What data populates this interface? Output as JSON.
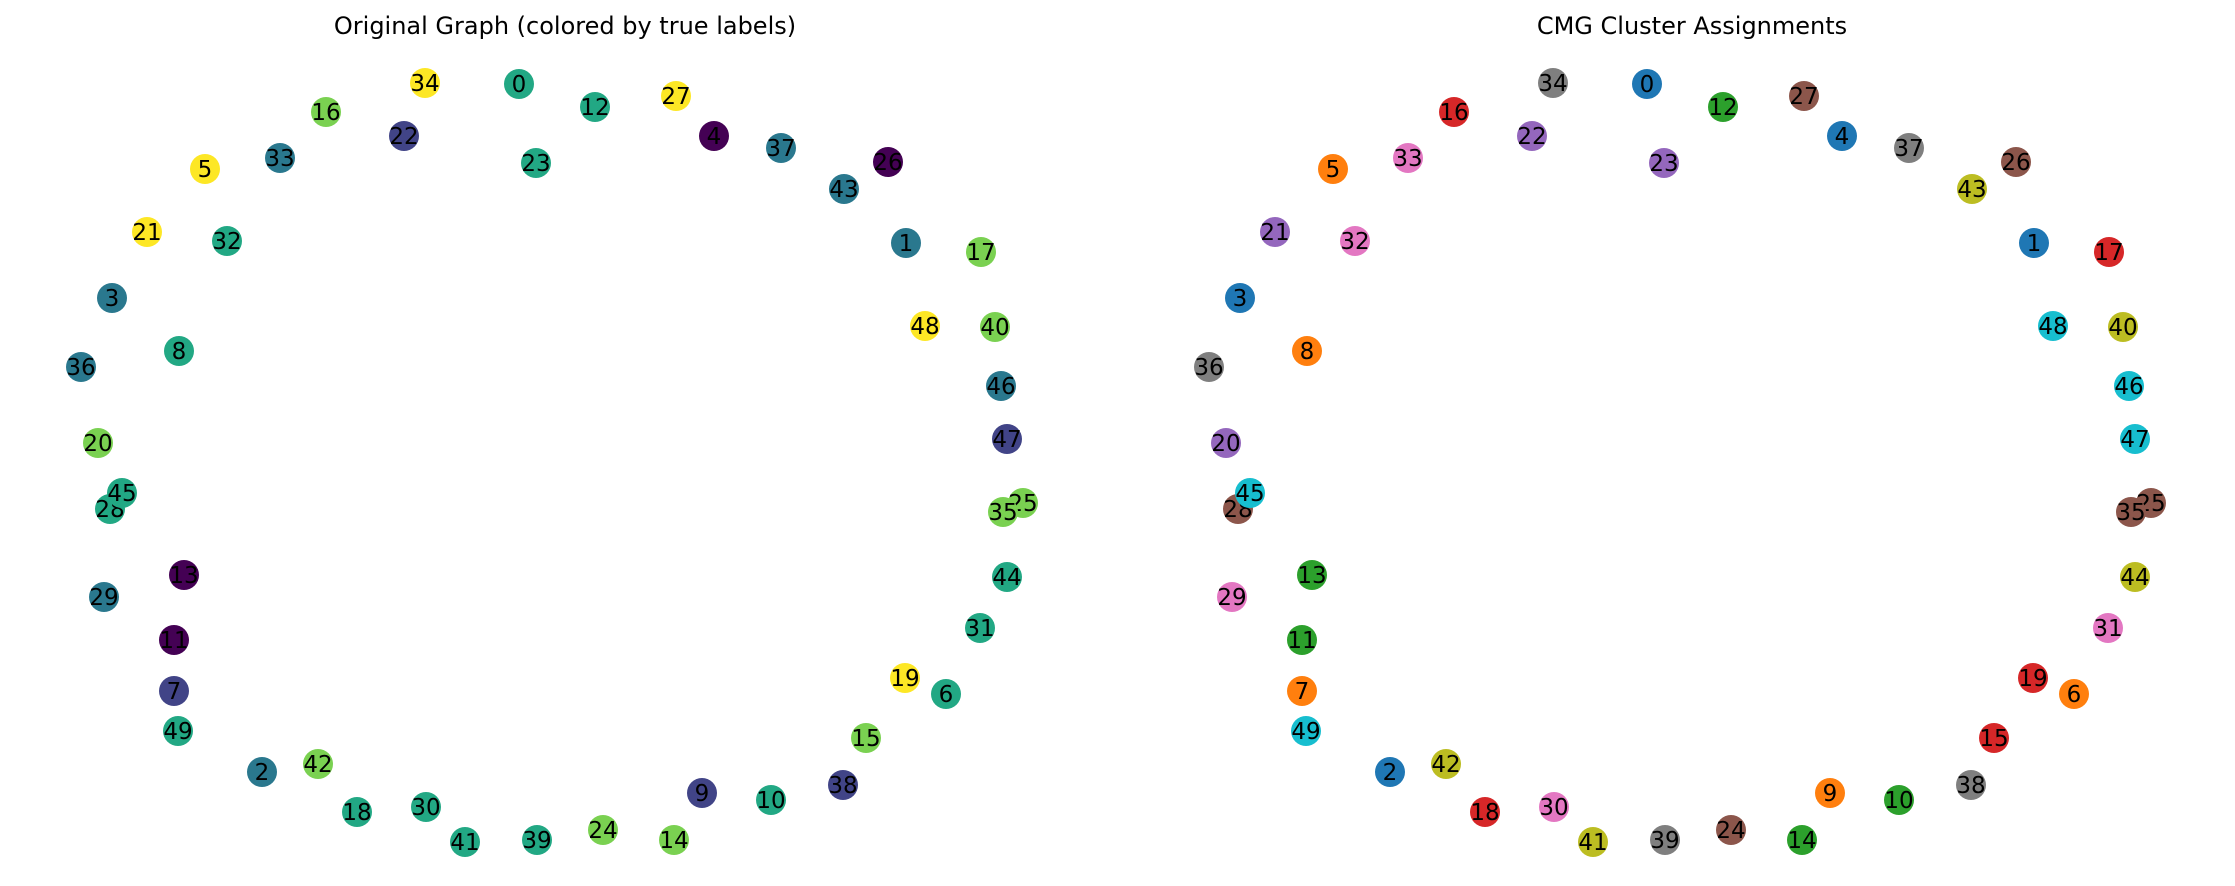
{
  "panels": [
    {
      "title": "Original Graph (colored by true labels)",
      "nodes": [
        {
          "label": "0",
          "color": "#22a884"
        },
        {
          "label": "1",
          "color": "#2a788e"
        },
        {
          "label": "2",
          "color": "#2a788e"
        },
        {
          "label": "3",
          "color": "#2a788e"
        },
        {
          "label": "4",
          "color": "#440154"
        },
        {
          "label": "5",
          "color": "#fde725"
        },
        {
          "label": "6",
          "color": "#22a884"
        },
        {
          "label": "7",
          "color": "#414487"
        },
        {
          "label": "8",
          "color": "#22a884"
        },
        {
          "label": "9",
          "color": "#414487"
        },
        {
          "label": "10",
          "color": "#22a884"
        },
        {
          "label": "11",
          "color": "#440154"
        },
        {
          "label": "12",
          "color": "#22a884"
        },
        {
          "label": "13",
          "color": "#440154"
        },
        {
          "label": "14",
          "color": "#7ad151"
        },
        {
          "label": "15",
          "color": "#7ad151"
        },
        {
          "label": "16",
          "color": "#7ad151"
        },
        {
          "label": "17",
          "color": "#7ad151"
        },
        {
          "label": "18",
          "color": "#22a884"
        },
        {
          "label": "19",
          "color": "#fde725"
        },
        {
          "label": "20",
          "color": "#7ad151"
        },
        {
          "label": "21",
          "color": "#fde725"
        },
        {
          "label": "22",
          "color": "#414487"
        },
        {
          "label": "23",
          "color": "#22a884"
        },
        {
          "label": "24",
          "color": "#7ad151"
        },
        {
          "label": "25",
          "color": "#7ad151"
        },
        {
          "label": "26",
          "color": "#440154"
        },
        {
          "label": "27",
          "color": "#fde725"
        },
        {
          "label": "28",
          "color": "#22a884"
        },
        {
          "label": "29",
          "color": "#2a788e"
        },
        {
          "label": "30",
          "color": "#22a884"
        },
        {
          "label": "31",
          "color": "#22a884"
        },
        {
          "label": "32",
          "color": "#22a884"
        },
        {
          "label": "33",
          "color": "#2a788e"
        },
        {
          "label": "34",
          "color": "#fde725"
        },
        {
          "label": "35",
          "color": "#7ad151"
        },
        {
          "label": "36",
          "color": "#2a788e"
        },
        {
          "label": "37",
          "color": "#2a788e"
        },
        {
          "label": "38",
          "color": "#414487"
        },
        {
          "label": "39",
          "color": "#22a884"
        },
        {
          "label": "40",
          "color": "#7ad151"
        },
        {
          "label": "41",
          "color": "#22a884"
        },
        {
          "label": "42",
          "color": "#7ad151"
        },
        {
          "label": "43",
          "color": "#2a788e"
        },
        {
          "label": "44",
          "color": "#22a884"
        },
        {
          "label": "45",
          "color": "#22a884"
        },
        {
          "label": "46",
          "color": "#2a788e"
        },
        {
          "label": "47",
          "color": "#414487"
        },
        {
          "label": "48",
          "color": "#fde725"
        },
        {
          "label": "49",
          "color": "#22a884"
        }
      ]
    },
    {
      "title": "CMG Cluster Assignments",
      "nodes": [
        {
          "label": "0",
          "color": "#1f77b4"
        },
        {
          "label": "1",
          "color": "#1f77b4"
        },
        {
          "label": "2",
          "color": "#1f77b4"
        },
        {
          "label": "3",
          "color": "#1f77b4"
        },
        {
          "label": "4",
          "color": "#1f77b4"
        },
        {
          "label": "5",
          "color": "#ff7f0e"
        },
        {
          "label": "6",
          "color": "#ff7f0e"
        },
        {
          "label": "7",
          "color": "#ff7f0e"
        },
        {
          "label": "8",
          "color": "#ff7f0e"
        },
        {
          "label": "9",
          "color": "#ff7f0e"
        },
        {
          "label": "10",
          "color": "#2ca02c"
        },
        {
          "label": "11",
          "color": "#2ca02c"
        },
        {
          "label": "12",
          "color": "#2ca02c"
        },
        {
          "label": "13",
          "color": "#2ca02c"
        },
        {
          "label": "14",
          "color": "#2ca02c"
        },
        {
          "label": "15",
          "color": "#d62728"
        },
        {
          "label": "16",
          "color": "#d62728"
        },
        {
          "label": "17",
          "color": "#d62728"
        },
        {
          "label": "18",
          "color": "#d62728"
        },
        {
          "label": "19",
          "color": "#d62728"
        },
        {
          "label": "20",
          "color": "#9467bd"
        },
        {
          "label": "21",
          "color": "#9467bd"
        },
        {
          "label": "22",
          "color": "#9467bd"
        },
        {
          "label": "23",
          "color": "#9467bd"
        },
        {
          "label": "24",
          "color": "#8c564b"
        },
        {
          "label": "25",
          "color": "#8c564b"
        },
        {
          "label": "26",
          "color": "#8c564b"
        },
        {
          "label": "27",
          "color": "#8c564b"
        },
        {
          "label": "28",
          "color": "#8c564b"
        },
        {
          "label": "29",
          "color": "#e377c2"
        },
        {
          "label": "30",
          "color": "#e377c2"
        },
        {
          "label": "31",
          "color": "#e377c2"
        },
        {
          "label": "32",
          "color": "#e377c2"
        },
        {
          "label": "33",
          "color": "#e377c2"
        },
        {
          "label": "34",
          "color": "#7f7f7f"
        },
        {
          "label": "35",
          "color": "#8c564b"
        },
        {
          "label": "36",
          "color": "#7f7f7f"
        },
        {
          "label": "37",
          "color": "#7f7f7f"
        },
        {
          "label": "38",
          "color": "#7f7f7f"
        },
        {
          "label": "39",
          "color": "#7f7f7f"
        },
        {
          "label": "40",
          "color": "#bcbd22"
        },
        {
          "label": "41",
          "color": "#bcbd22"
        },
        {
          "label": "42",
          "color": "#bcbd22"
        },
        {
          "label": "43",
          "color": "#bcbd22"
        },
        {
          "label": "44",
          "color": "#bcbd22"
        },
        {
          "label": "45",
          "color": "#17becf"
        },
        {
          "label": "46",
          "color": "#17becf"
        },
        {
          "label": "47",
          "color": "#17becf"
        },
        {
          "label": "48",
          "color": "#17becf"
        },
        {
          "label": "49",
          "color": "#17becf"
        }
      ]
    }
  ]
}
